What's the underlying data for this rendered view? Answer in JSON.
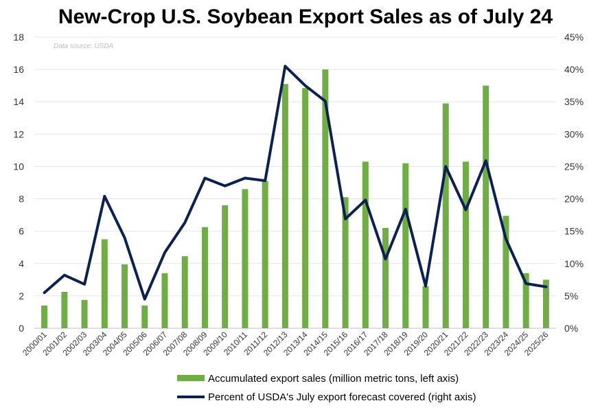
{
  "chart_data": {
    "type": "bar+line",
    "title": "New-Crop U.S. Soybean Export Sales as of July 24",
    "source_note": "Data source: USDA",
    "categories": [
      "2000/01",
      "2001/02",
      "2002/03",
      "2003/04",
      "2004/05",
      "2005/06",
      "2006/07",
      "2007/08",
      "2008/09",
      "2009/10",
      "2010/11",
      "2011/12",
      "2012/13",
      "2013/14",
      "2014/15",
      "2015/16",
      "2016/17",
      "2017/18",
      "2018/19",
      "2019/20",
      "2020/21",
      "2021/22",
      "2022/23",
      "2023/24",
      "2024/25",
      "2025/26"
    ],
    "series": [
      {
        "name": "Accumulated export sales (million metric tons, left axis)",
        "type": "bar",
        "axis": "left",
        "color": "#70ad47",
        "values": [
          1.4,
          2.25,
          1.75,
          5.5,
          3.95,
          1.4,
          3.4,
          4.45,
          6.25,
          7.6,
          8.6,
          9.1,
          15.1,
          14.85,
          16.0,
          8.1,
          10.3,
          6.2,
          10.2,
          2.6,
          13.9,
          10.3,
          15.0,
          6.95,
          3.4,
          3.0
        ]
      },
      {
        "name": "Percent of USDA's July export forecast covered (right axis)",
        "type": "line",
        "axis": "right",
        "color": "#0d2150",
        "values": [
          5.5,
          8.2,
          6.8,
          20.4,
          14.0,
          4.5,
          11.7,
          16.3,
          23.2,
          22.0,
          23.2,
          22.8,
          40.5,
          37.5,
          35.1,
          16.9,
          19.8,
          10.7,
          18.4,
          6.5,
          25.0,
          18.3,
          25.9,
          13.8,
          6.9,
          6.4
        ]
      }
    ],
    "y_left": {
      "min": 0,
      "max": 18,
      "ticks": [
        "0",
        "2",
        "4",
        "6",
        "8",
        "10",
        "12",
        "14",
        "16",
        "18"
      ]
    },
    "y_right": {
      "min": 0,
      "max": 45,
      "ticks": [
        "0%",
        "5%",
        "10%",
        "15%",
        "20%",
        "25%",
        "30%",
        "35%",
        "40%",
        "45%"
      ]
    },
    "grid": true,
    "legend_position": "bottom"
  }
}
